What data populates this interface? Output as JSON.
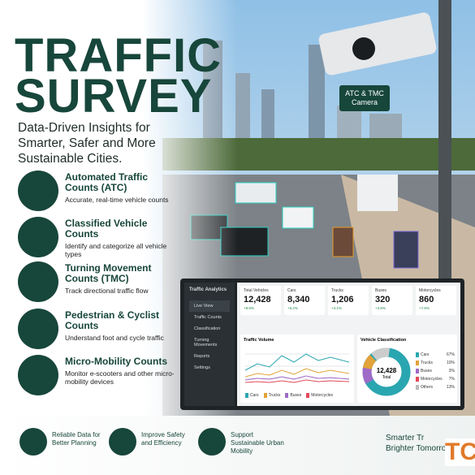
{
  "header": {
    "title_lines": [
      "TRAFFIC",
      "SURVEY"
    ],
    "subtitle_lines": [
      "Data-Driven Insights for",
      "Smarter, Safer and More",
      "Sustainable Cities."
    ]
  },
  "photo": {
    "camera_label": "ATC & TMC Camera"
  },
  "features": [
    {
      "title": "Automated Traffic Counts (ATC)",
      "description": "Accurate, real-time vehicle counts"
    },
    {
      "title": "Classified Vehicle Counts",
      "description": "Identify and categorize all vehicle types"
    },
    {
      "title": "Turning Movement Counts (TMC)",
      "description": "Track directional traffic flow"
    },
    {
      "title": "Pedestrian & Cyclist Counts",
      "description": "Understand foot and cycle traffic"
    },
    {
      "title": "Micro-Mobility Counts",
      "description": "Monitor e-scooters and other micro-mobility devices"
    }
  ],
  "dashboard": {
    "app_title": "Traffic Analytics",
    "menu": [
      "Live View",
      "Traffic Counts",
      "Classification",
      "Turning Movements",
      "Reports",
      "Settings"
    ],
    "cards": [
      {
        "label": "Total Vehicles",
        "value": "12,428",
        "change": "+8.5%"
      },
      {
        "label": "Cars",
        "value": "8,340",
        "change": "+6.2%"
      },
      {
        "label": "Trucks",
        "value": "1,206",
        "change": "+4.1%"
      },
      {
        "label": "Buses",
        "value": "320",
        "change": "+3.8%"
      },
      {
        "label": "Motorcycles",
        "value": "860",
        "change": "+7.6%"
      }
    ],
    "volume": {
      "title": "Traffic Volume",
      "legend": [
        "Cars",
        "Trucks",
        "Buses",
        "Motorcycles"
      ]
    },
    "classification": {
      "title": "Vehicle Classification",
      "total_value": "12,428",
      "total_label": "Total",
      "legend": [
        {
          "name": "Cars",
          "share": "67%"
        },
        {
          "name": "Trucks",
          "share": "10%"
        },
        {
          "name": "Buses",
          "share": "3%"
        },
        {
          "name": "Motorcycles",
          "share": "7%"
        },
        {
          "name": "Others",
          "share": "13%"
        }
      ]
    }
  },
  "footer": {
    "benefits": [
      "Reliable Data for Better Planning",
      "Improve Safety and Efficiency",
      "Support Sustainable Urban Mobility"
    ],
    "tagline_lines": [
      "Smarter Tr",
      "Brighter Tomorrow"
    ],
    "logo": "TC"
  }
}
